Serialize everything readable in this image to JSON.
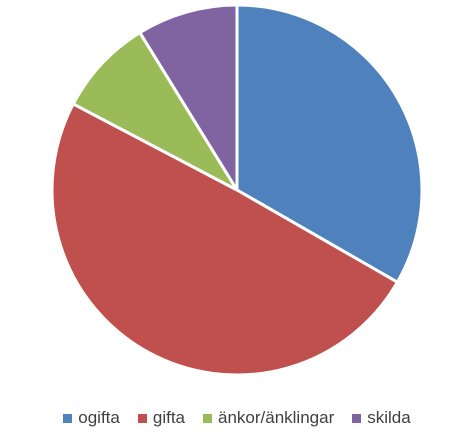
{
  "chart_data": {
    "type": "pie",
    "categories": [
      "ogifta",
      "gifta",
      "änkor/änklingar",
      "skilda"
    ],
    "values": [
      33.3,
      49.4,
      8.5,
      8.8
    ],
    "colors": [
      "#4f81bd",
      "#c0504d",
      "#9bbb59",
      "#8064a2"
    ],
    "legend": "bottom"
  }
}
